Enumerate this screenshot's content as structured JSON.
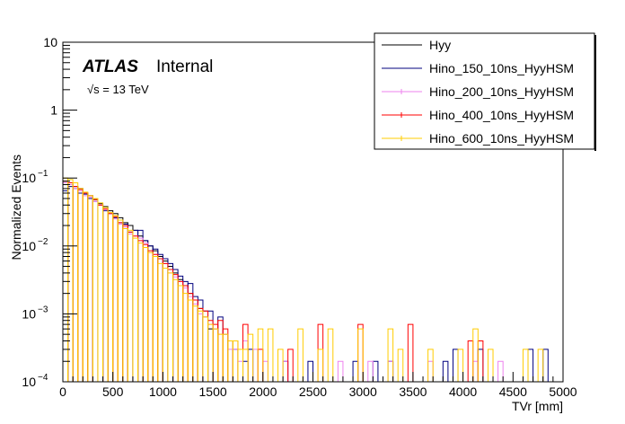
{
  "chart_data": {
    "type": "line",
    "style": "step-histogram",
    "xlabel": "TVr [mm]",
    "ylabel": "Normalized Events",
    "xlim": [
      0,
      5000
    ],
    "ylim": [
      0.0001,
      10
    ],
    "yscale": "log",
    "x_ticks": [
      "0",
      "500",
      "1000",
      "1500",
      "2000",
      "2500",
      "3000",
      "3500",
      "4000",
      "4500",
      "5000"
    ],
    "y_ticks": [
      {
        "base": "10",
        "exp": "−4",
        "value": 0.0001
      },
      {
        "base": "10",
        "exp": "−3",
        "value": 0.001
      },
      {
        "base": "10",
        "exp": "−2",
        "value": 0.01
      },
      {
        "base": "10",
        "exp": "−1",
        "value": 0.1
      },
      {
        "base": "1",
        "exp": "",
        "value": 1
      },
      {
        "base": "10",
        "exp": "",
        "value": 10
      }
    ],
    "atlas_label": "ATLAS",
    "atlas_status": "Internal",
    "energy_label": "√s = 13 TeV",
    "grid": false,
    "legend_position": "top-right",
    "series": [
      {
        "name": "Hyy",
        "color": "#000000",
        "x": [
          0,
          50,
          100,
          150,
          200,
          250,
          300,
          350,
          400,
          450,
          500,
          550,
          600,
          650,
          700,
          750,
          800,
          850,
          900,
          950,
          1000,
          1050,
          1100,
          1150,
          1200,
          1250,
          1300,
          1350,
          1400,
          1450
        ],
        "y": [
          0.09,
          0.08,
          0.075,
          0.07,
          0.06,
          0.055,
          0.048,
          0.042,
          0.038,
          0.033,
          0.03,
          0.026,
          0.022,
          0.02,
          0.017,
          0.014,
          0.012,
          0.01,
          0.0085,
          0.007,
          0.006,
          0.005,
          0.004,
          0.0032,
          0.0026,
          0.002,
          0.0016,
          0.0012,
          0.0009,
          0.0006
        ]
      },
      {
        "name": "Hino_150_10ns_HyyHSM",
        "color": "#00007f",
        "x": [
          0,
          50,
          100,
          150,
          200,
          250,
          300,
          350,
          400,
          450,
          500,
          550,
          600,
          650,
          700,
          750,
          800,
          850,
          900,
          950,
          1000,
          1050,
          1100,
          1150,
          1200,
          1250,
          1300,
          1350,
          1400,
          1450,
          1500,
          1550,
          1600,
          1650,
          1700,
          1800,
          1850,
          2200,
          2450,
          2900,
          3100,
          3250,
          3800,
          3900,
          4150,
          4650,
          4800
        ],
        "y": [
          0.065,
          0.075,
          0.07,
          0.06,
          0.058,
          0.05,
          0.045,
          0.04,
          0.033,
          0.03,
          0.026,
          0.022,
          0.021,
          0.016,
          0.017,
          0.017,
          0.012,
          0.01,
          0.009,
          0.0075,
          0.0065,
          0.0055,
          0.0045,
          0.0036,
          0.003,
          0.0028,
          0.0018,
          0.0016,
          0.0011,
          0.0011,
          0.0006,
          0.0009,
          0.0005,
          0.0004,
          0.0003,
          0.0002,
          0.0003,
          0.0002,
          0.0002,
          0.0002,
          0.0002,
          0.0002,
          0.0002,
          0.0003,
          0.0003,
          0.0003,
          0.0003
        ]
      },
      {
        "name": "Hino_200_10ns_HyyHSM",
        "color": "#ee82ee",
        "x": [
          0,
          50,
          100,
          150,
          200,
          250,
          300,
          350,
          400,
          450,
          500,
          550,
          600,
          650,
          700,
          750,
          800,
          850,
          900,
          950,
          1000,
          1050,
          1100,
          1150,
          1200,
          1250,
          1300,
          1350,
          1400,
          1450,
          1500,
          1550,
          1600,
          1650,
          1700,
          1750,
          1800,
          1900,
          2000,
          2200,
          2750,
          3050,
          3250,
          3650,
          4100,
          4350
        ],
        "y": [
          0.085,
          0.08,
          0.07,
          0.065,
          0.055,
          0.052,
          0.045,
          0.04,
          0.034,
          0.03,
          0.025,
          0.021,
          0.019,
          0.015,
          0.014,
          0.013,
          0.011,
          0.008,
          0.0075,
          0.0065,
          0.0055,
          0.004,
          0.0035,
          0.003,
          0.0024,
          0.0018,
          0.0014,
          0.001,
          0.0009,
          0.0007,
          0.0006,
          0.0005,
          0.0005,
          0.0003,
          0.0003,
          0.0002,
          0.0004,
          0.0003,
          0.0002,
          0.0002,
          0.0002,
          0.0002,
          0.0002,
          0.0002,
          0.0002,
          0.0002
        ]
      },
      {
        "name": "Hino_400_10ns_HyyHSM",
        "color": "#ff0000",
        "x": [
          0,
          50,
          100,
          150,
          200,
          250,
          300,
          350,
          400,
          450,
          500,
          550,
          600,
          650,
          700,
          750,
          800,
          850,
          900,
          950,
          1000,
          1050,
          1100,
          1150,
          1200,
          1250,
          1300,
          1350,
          1400,
          1450,
          1500,
          1550,
          1600,
          1700,
          1800,
          1950,
          2250,
          2550,
          2950,
          3450,
          4050,
          4150
        ],
        "y": [
          0.09,
          0.085,
          0.075,
          0.068,
          0.06,
          0.055,
          0.048,
          0.04,
          0.035,
          0.03,
          0.027,
          0.022,
          0.02,
          0.016,
          0.014,
          0.012,
          0.0105,
          0.0085,
          0.0075,
          0.0065,
          0.0055,
          0.0045,
          0.0038,
          0.003,
          0.0026,
          0.002,
          0.0016,
          0.0012,
          0.0011,
          0.0008,
          0.0007,
          0.0008,
          0.0006,
          0.0004,
          0.0007,
          0.0003,
          0.0003,
          0.0007,
          0.0007,
          0.0007,
          0.0004,
          0.0004
        ]
      },
      {
        "name": "Hino_600_10ns_HyyHSM",
        "color": "#ffcc00",
        "x": [
          0,
          50,
          100,
          150,
          200,
          250,
          300,
          350,
          400,
          450,
          500,
          550,
          600,
          650,
          700,
          750,
          800,
          850,
          900,
          950,
          1000,
          1050,
          1100,
          1150,
          1200,
          1250,
          1300,
          1350,
          1400,
          1450,
          1500,
          1550,
          1600,
          1650,
          1700,
          1750,
          1800,
          1850,
          1950,
          2050,
          2150,
          2350,
          2550,
          2650,
          2950,
          3250,
          3350,
          3650,
          3950,
          4100,
          4250,
          4600,
          4750
        ],
        "y": [
          0.1,
          0.095,
          0.085,
          0.07,
          0.062,
          0.055,
          0.05,
          0.043,
          0.037,
          0.031,
          0.028,
          0.024,
          0.018,
          0.017,
          0.013,
          0.011,
          0.0095,
          0.008,
          0.007,
          0.0055,
          0.0047,
          0.004,
          0.0032,
          0.0026,
          0.002,
          0.0016,
          0.0013,
          0.0011,
          0.0009,
          0.0007,
          0.0006,
          0.0005,
          0.0005,
          0.0004,
          0.0004,
          0.0003,
          0.0003,
          0.0005,
          0.0006,
          0.0006,
          0.0003,
          0.0006,
          0.0003,
          0.0006,
          0.0006,
          0.0006,
          0.0003,
          0.0003,
          0.0003,
          0.0006,
          0.0003,
          0.0003,
          0.0003
        ]
      }
    ]
  }
}
